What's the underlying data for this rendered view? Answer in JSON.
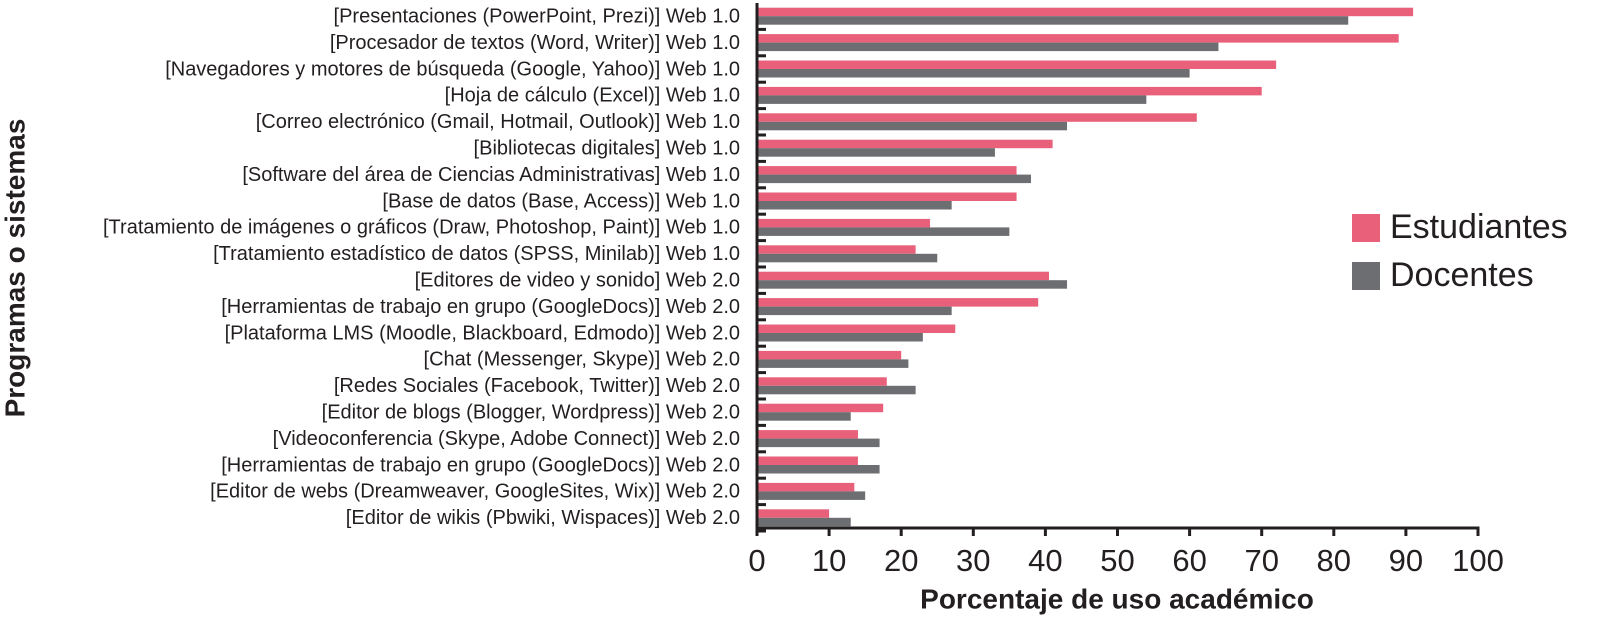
{
  "chart_data": {
    "type": "barh",
    "xlabel": "Porcentaje de uso académico",
    "ylabel": "Programas o sistemas",
    "categories": [
      "[Presentaciones (PowerPoint, Prezi)] Web 1.0",
      "[Procesador de textos (Word, Writer)] Web 1.0",
      "[Navegadores y motores de búsqueda (Google, Yahoo)] Web 1.0",
      "[Hoja de cálculo (Excel)] Web 1.0",
      "[Correo electrónico (Gmail, Hotmail, Outlook)] Web 1.0",
      "[Bibliotecas digitales] Web 1.0",
      "[Software del área de Ciencias Administrativas] Web 1.0",
      "[Base de datos (Base, Access)] Web 1.0",
      "[Tratamiento de imágenes o gráficos (Draw, Photoshop, Paint)] Web 1.0",
      "[Tratamiento estadístico de datos (SPSS, Minilab)] Web 1.0",
      "[Editores de video y sonido] Web 2.0",
      "[Herramientas de trabajo en grupo (GoogleDocs)] Web 2.0",
      "[Plataforma LMS (Moodle, Blackboard, Edmodo)] Web 2.0",
      "[Chat (Messenger, Skype)] Web 2.0",
      "[Redes Sociales (Facebook, Twitter)] Web 2.0",
      "[Editor de blogs (Blogger, Wordpress)] Web 2.0",
      "[Videoconferencia (Skype, Adobe Connect)] Web 2.0",
      "[Herramientas de trabajo en grupo (GoogleDocs)] Web 2.0",
      "[Editor de webs (Dreamweaver, GoogleSites, Wix)] Web 2.0",
      "[Editor de wikis (Pbwiki, Wispaces)] Web 2.0"
    ],
    "series": [
      {
        "name": "Estudiantes",
        "color": "#e8607a",
        "values": [
          91,
          89,
          72,
          70,
          61,
          41,
          36,
          36,
          24,
          22,
          40.5,
          39,
          27.5,
          20,
          18,
          17.5,
          14,
          14,
          13.5,
          10
        ]
      },
      {
        "name": "Docentes",
        "color": "#6d6e71",
        "values": [
          82,
          64,
          60,
          54,
          43,
          33,
          38,
          27,
          35,
          25,
          43,
          27,
          23,
          21,
          22,
          13,
          17,
          17,
          15,
          13
        ]
      }
    ],
    "xlim": [
      0,
      100
    ],
    "xticks": [
      0,
      10,
      20,
      30,
      40,
      50,
      60,
      70,
      80,
      90,
      100
    ],
    "legend": "right"
  }
}
